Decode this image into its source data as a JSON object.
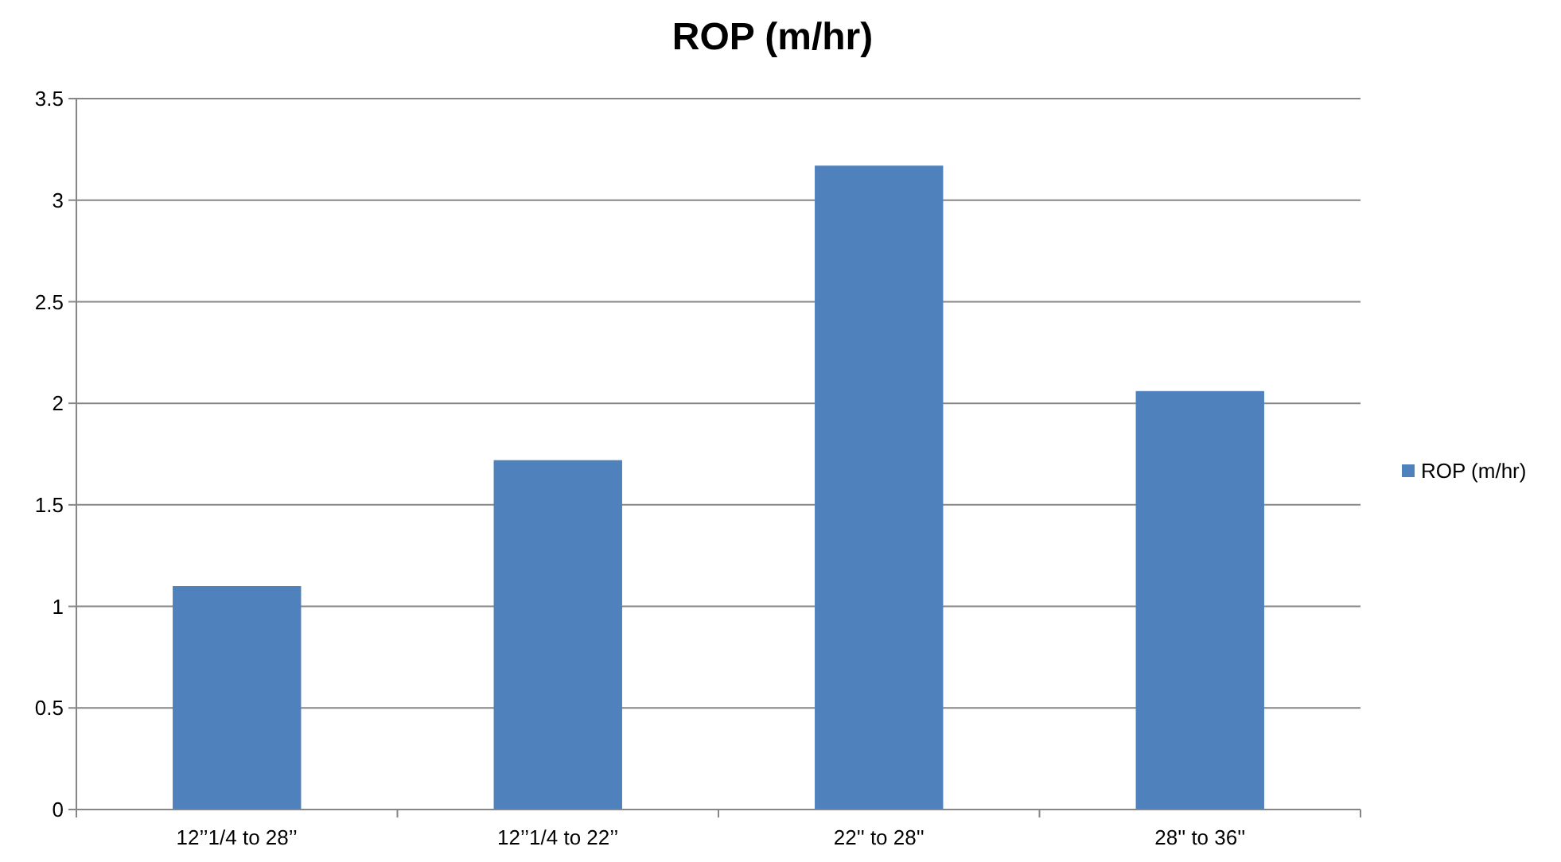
{
  "chart_data": {
    "type": "bar",
    "title": "ROP (m/hr)",
    "categories": [
      "12’’1/4 to 28’’",
      "12’’1/4 to 22’’",
      "22'' to 28''",
      "28'' to 36''"
    ],
    "series": [
      {
        "name": "ROP (m/hr)",
        "color": "#4f81bd",
        "values": [
          1.1,
          1.72,
          3.17,
          2.06
        ]
      }
    ],
    "ylim": [
      0,
      3.5
    ],
    "yticks": [
      0,
      0.5,
      1,
      1.5,
      2,
      2.5,
      3,
      3.5
    ],
    "grid": "y",
    "legend": "right"
  }
}
